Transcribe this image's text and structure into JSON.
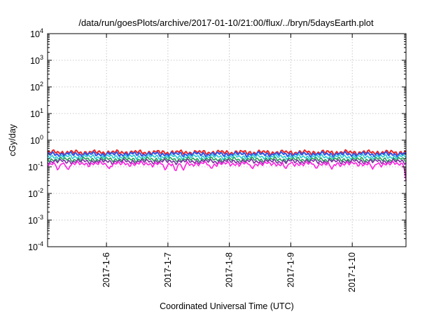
{
  "chart_data": {
    "type": "line",
    "title": "/data/run/goesPlots/archive/2017-01-10/21:00/flux/../bryn/5daysEarth.plot",
    "xlabel": "Coordinated Universal Time (UTC)",
    "ylabel": "cGy/day",
    "yscale": "log",
    "ylim": [
      0.0001,
      10000
    ],
    "ytick_values": [
      0.0001,
      0.001,
      0.01,
      0.1,
      1,
      10,
      100,
      1000,
      10000
    ],
    "ytick_labels": [
      {
        "base": "10",
        "exp": "-4"
      },
      {
        "base": "10",
        "exp": "-3"
      },
      {
        "base": "10",
        "exp": "-2"
      },
      {
        "base": "10",
        "exp": "-1"
      },
      {
        "base": "10",
        "exp": "0"
      },
      {
        "base": "10",
        "exp": "1"
      },
      {
        "base": "10",
        "exp": "2"
      },
      {
        "base": "10",
        "exp": "3"
      },
      {
        "base": "10",
        "exp": "4"
      }
    ],
    "xlim": [
      "2017-01-05T01:00",
      "2017-01-10T21:00"
    ],
    "xtick_values": [
      "2017-01-06T00:00",
      "2017-01-07T00:00",
      "2017-01-08T00:00",
      "2017-01-09T00:00",
      "2017-01-10T00:00"
    ],
    "xtick_labels": [
      "2017-1-6",
      "2017-1-7",
      "2017-1-8",
      "2017-1-9",
      "2017-1-10"
    ],
    "grid": true,
    "legend": "none",
    "series": [
      {
        "color": "#e8262c",
        "baseline": 0.35,
        "dips": []
      },
      {
        "color": "#2f53e6",
        "baseline": 0.3,
        "dips": []
      },
      {
        "color": "#27c9d6",
        "baseline": 0.24,
        "dips": []
      },
      {
        "color": "#25a05a",
        "baseline": 0.19,
        "dips": []
      },
      {
        "color": "#7a2fa0",
        "baseline": 0.16,
        "dips": []
      },
      {
        "color": "#ff22e0",
        "baseline": 0.13,
        "dips": [
          {
            "t": "2017-01-05T05:00",
            "v": 0.07
          },
          {
            "t": "2017-01-05T09:00",
            "v": 0.07
          },
          {
            "t": "2017-01-06T01:00",
            "v": 0.08
          },
          {
            "t": "2017-01-06T23:00",
            "v": 0.07
          },
          {
            "t": "2017-01-07T03:00",
            "v": 0.06
          },
          {
            "t": "2017-01-07T06:00",
            "v": 0.07
          },
          {
            "t": "2017-01-07T17:00",
            "v": 0.08
          },
          {
            "t": "2017-01-08T09:00",
            "v": 0.08
          },
          {
            "t": "2017-01-08T22:00",
            "v": 0.08
          },
          {
            "t": "2017-01-09T10:00",
            "v": 0.08
          },
          {
            "t": "2017-01-09T16:00",
            "v": 0.08
          },
          {
            "t": "2017-01-10T08:00",
            "v": 0.08
          },
          {
            "t": "2017-01-10T21:00",
            "v": 0.03
          }
        ]
      }
    ]
  }
}
